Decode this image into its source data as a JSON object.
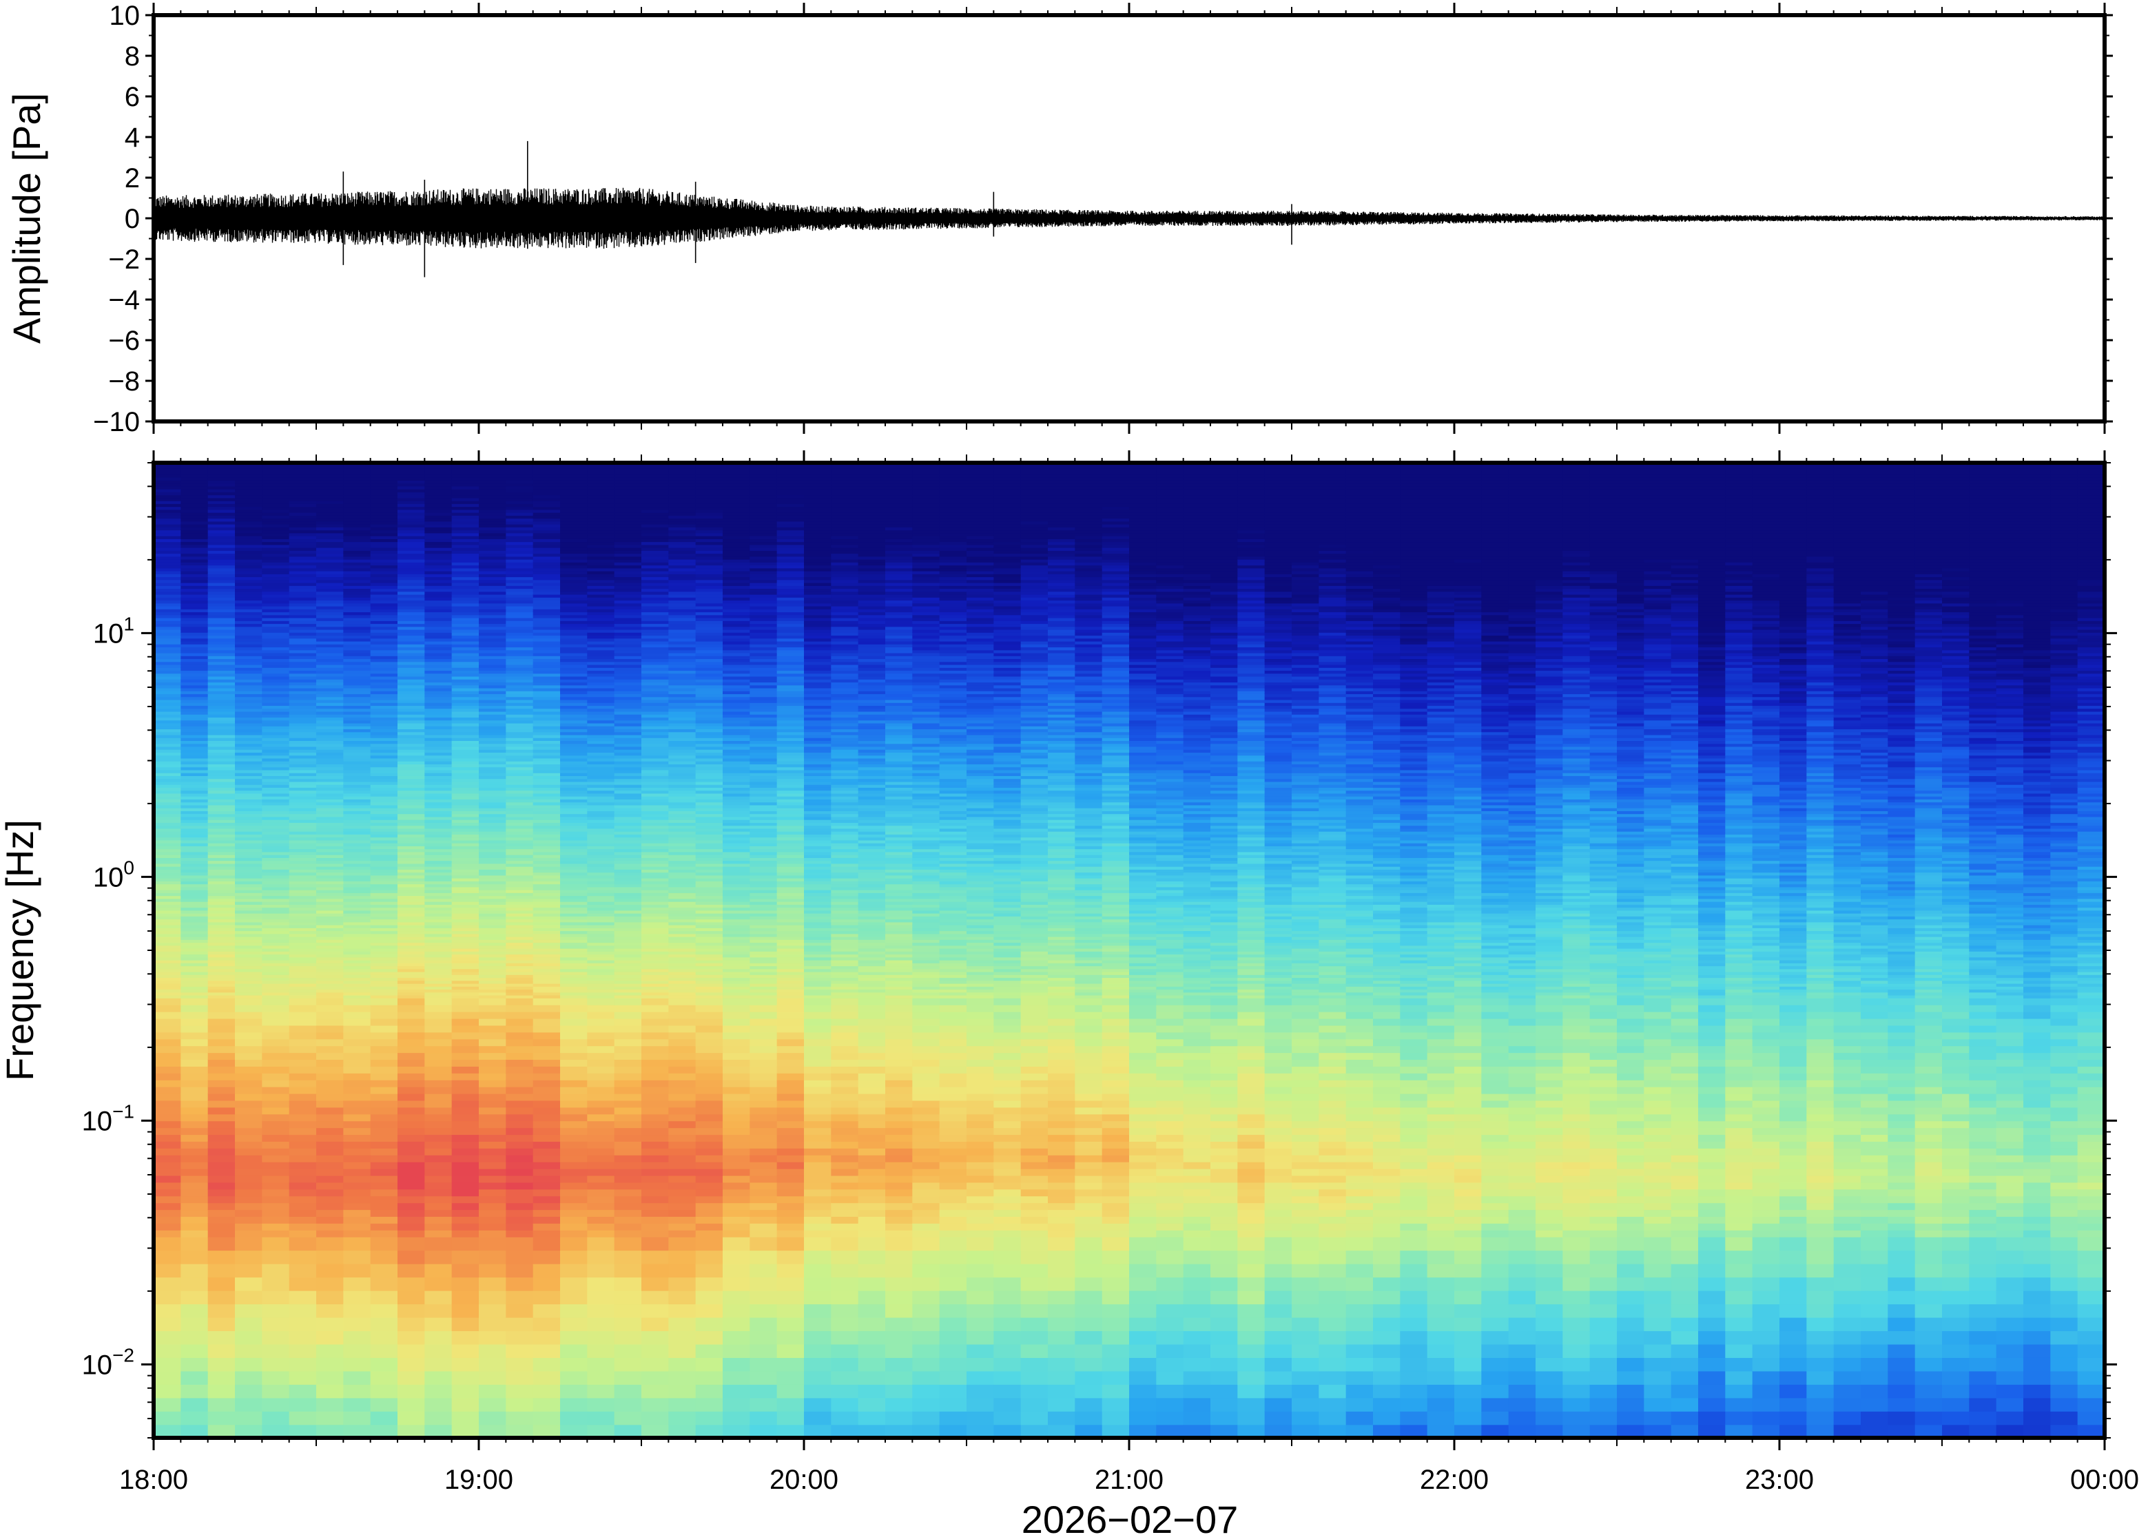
{
  "chart_data": [
    {
      "type": "line",
      "panel": "waveform",
      "ylabel": "Amplitude [Pa]",
      "ylim": [
        -10,
        10
      ],
      "yticks": [
        10,
        8,
        6,
        4,
        2,
        0,
        -2,
        -4,
        -6,
        -8,
        -10
      ],
      "ytick_labels": [
        "10",
        "8",
        "6",
        "4",
        "2",
        "0",
        "−2",
        "−4",
        "−6",
        "−8",
        "−10"
      ],
      "xlim": [
        "18:00",
        "24:00"
      ],
      "envelope": {
        "time_hours": [
          18.0,
          18.5,
          19.0,
          19.5,
          19.7,
          20.0,
          20.5,
          21.0,
          21.5,
          22.0,
          22.5,
          23.0,
          23.5,
          24.0
        ],
        "half_amplitude_pa": [
          0.9,
          1.0,
          1.2,
          1.2,
          0.9,
          0.5,
          0.4,
          0.3,
          0.3,
          0.22,
          0.15,
          0.12,
          0.1,
          0.08
        ]
      },
      "spikes": [
        {
          "time": "18:35",
          "min": -2.3,
          "max": 2.3
        },
        {
          "time": "18:50",
          "min": -2.9,
          "max": 1.9
        },
        {
          "time": "19:09",
          "min": -1.5,
          "max": 3.8
        },
        {
          "time": "19:40",
          "min": -2.2,
          "max": 1.8
        },
        {
          "time": "20:35",
          "min": -0.9,
          "max": 1.3
        },
        {
          "time": "21:30",
          "min": -1.3,
          "max": 0.7
        }
      ]
    },
    {
      "type": "heatmap",
      "panel": "spectrogram",
      "ylabel": "Frequency [Hz]",
      "yscale": "log",
      "ylim": [
        0.005,
        50
      ],
      "yticks": [
        {
          "value": 10,
          "base": "10",
          "exp": "1"
        },
        {
          "value": 1,
          "base": "10",
          "exp": "0"
        },
        {
          "value": 0.1,
          "base": "10",
          "exp": "−1"
        },
        {
          "value": 0.01,
          "base": "10",
          "exp": "−2"
        }
      ],
      "xlabel": "2026−02−07",
      "xticks": [
        "18:00",
        "19:00",
        "20:00",
        "21:00",
        "22:00",
        "23:00",
        "00:00"
      ],
      "xtick_hours": [
        18,
        19,
        20,
        21,
        22,
        23,
        24
      ],
      "colormap": "jet-like",
      "colors": {
        "low": "#0b0b7a",
        "mid": "#c9f28c",
        "high": "#e8504f"
      },
      "time_hours": [
        18,
        18.5,
        19,
        19.5,
        20,
        20.5,
        21,
        21.5,
        22,
        22.5,
        23,
        23.5,
        24
      ],
      "peak_power_frequency_hz": [
        0.06,
        0.06,
        0.06,
        0.06,
        0.07,
        0.07,
        0.07,
        0.06,
        0.06,
        0.06,
        0.06,
        0.06,
        0.05
      ],
      "peak_power_level": [
        0.93,
        0.95,
        0.97,
        0.95,
        0.86,
        0.8,
        0.76,
        0.72,
        0.7,
        0.66,
        0.63,
        0.6,
        0.58
      ]
    }
  ]
}
